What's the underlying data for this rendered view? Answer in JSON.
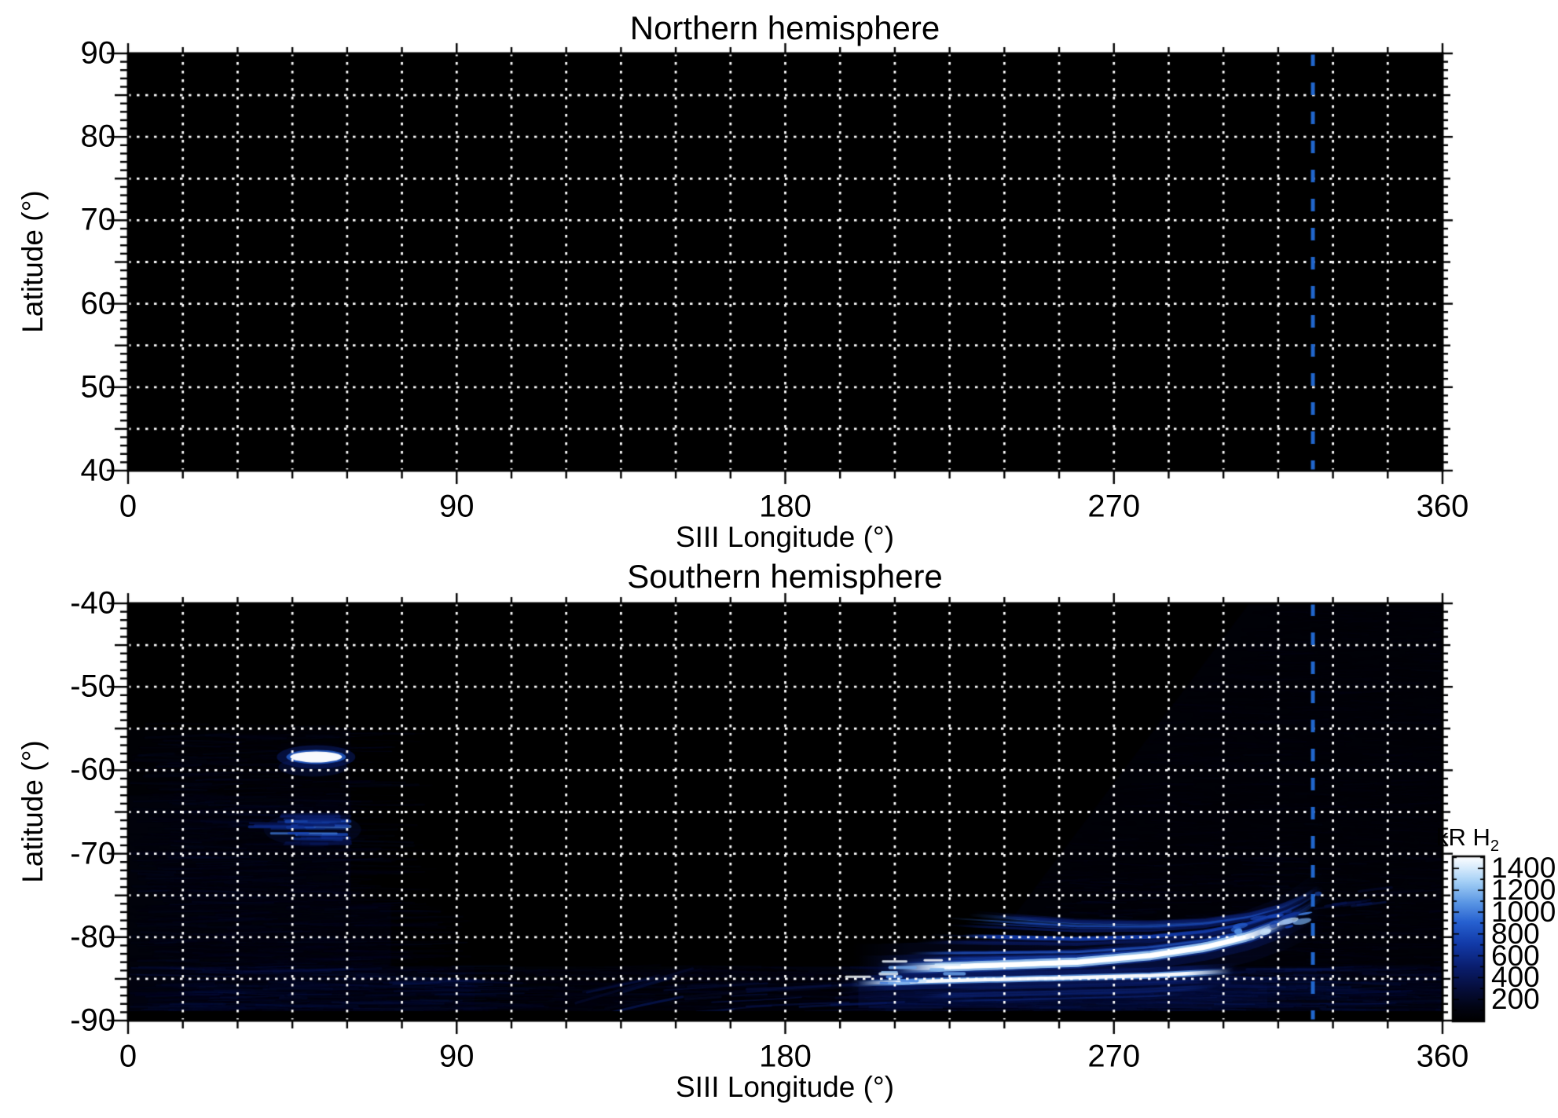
{
  "figure": {
    "background": "#ffffff",
    "grid_color": "#ffffff",
    "text_color": "#000000",
    "reference_line_color": "#2166cc"
  },
  "north": {
    "title": "Northern hemisphere",
    "xlabel": "SIII Longitude (°)",
    "ylabel": "Latitude (°)",
    "xticks": [
      0,
      90,
      180,
      270,
      360
    ],
    "yticks": [
      90,
      80,
      70,
      60,
      50,
      40
    ]
  },
  "south": {
    "title": "Southern hemisphere",
    "xlabel": "SIII Longitude (°)",
    "ylabel": "Latitude (°)",
    "xticks": [
      0,
      90,
      180,
      270,
      360
    ],
    "yticks": [
      -40,
      -50,
      -60,
      -70,
      -80,
      -90
    ]
  },
  "colorbar": {
    "label_main": "kR H",
    "label_sub": "2",
    "ticks": [
      1400,
      1200,
      1000,
      800,
      600,
      400,
      200
    ],
    "value_range": [
      0,
      1510
    ],
    "gradient": [
      [
        0.0,
        "#000000"
      ],
      [
        0.08,
        "#020412"
      ],
      [
        0.2,
        "#060e3c"
      ],
      [
        0.33,
        "#0a1e6e"
      ],
      [
        0.47,
        "#123aa8"
      ],
      [
        0.6,
        "#2660d0"
      ],
      [
        0.72,
        "#5a96e4"
      ],
      [
        0.84,
        "#a0cdf5"
      ],
      [
        0.93,
        "#d7ebfc"
      ],
      [
        1.0,
        "#ffffff"
      ]
    ]
  },
  "chart_data": [
    {
      "type": "heatmap",
      "title": "Northern hemisphere",
      "xlabel": "SIII Longitude (°)",
      "ylabel": "Latitude (°)",
      "xlim": [
        0,
        360
      ],
      "ylim": [
        40,
        90
      ],
      "xticks": [
        0,
        90,
        180,
        270,
        360
      ],
      "yticks": [
        40,
        50,
        60,
        70,
        80,
        90
      ],
      "grid": {
        "x_spacing_deg": 15,
        "y_spacing_deg": 5,
        "style": "dotted",
        "color": "#ffffff"
      },
      "background": "#000000",
      "reference_line": {
        "lon": 324.5,
        "style": "dashed",
        "color": "#2166cc"
      },
      "data_summary": "no emission shown; panel entirely black"
    },
    {
      "type": "heatmap",
      "title": "Southern hemisphere",
      "xlabel": "SIII Longitude (°)",
      "ylabel": "Latitude (°)",
      "xlim": [
        0,
        360
      ],
      "ylim": [
        -90,
        -40
      ],
      "xticks": [
        0,
        90,
        180,
        270,
        360
      ],
      "yticks": [
        -90,
        -80,
        -70,
        -60,
        -50,
        -40
      ],
      "grid": {
        "x_spacing_deg": 15,
        "y_spacing_deg": 5,
        "style": "dotted",
        "color": "#ffffff"
      },
      "background": "#000000",
      "reference_line": {
        "lon": 324.5,
        "style": "dashed",
        "color": "#2166cc"
      },
      "colorbar": {
        "label": "kR H2",
        "ticks": [
          200,
          400,
          600,
          800,
          1000,
          1200,
          1400
        ],
        "range": [
          0,
          1510
        ]
      },
      "data_summary": "UV auroral emission map: bright main oval arc from lon 200-325 rising from lat -85 to -76, secondary arc below it, filament fan above, bright spot near lon 45-60 lat -58.5, secondary patch lon 40-61 lat -67, diffuse emission at low latitudes lon 0-62 and lon>300, faint streaks along lat -86 to -89",
      "features": [
        {
          "name": "dawn-bright-spot",
          "type": "spot",
          "lon_center": 51.5,
          "lat_center": -58.4,
          "lon_halfwidth": 7.5,
          "lat_halfwidth": 0.9,
          "peak_kR": 1500
        },
        {
          "name": "dawn-secondary-patch",
          "type": "patch",
          "lon_range": [
            38,
            61
          ],
          "lat_range": [
            -69.2,
            -64.8
          ],
          "peak_kR": 950
        },
        {
          "name": "main-auroral-arc",
          "type": "arc",
          "path": [
            [
              207,
              -83.8
            ],
            [
              235,
              -83.4
            ],
            [
              260,
              -83.0
            ],
            [
              280,
              -82.2
            ],
            [
              295,
              -81.2
            ],
            [
              307,
              -79.9
            ],
            [
              316,
              -78.4
            ],
            [
              322,
              -77.0
            ],
            [
              326,
              -75.7
            ]
          ],
          "core_lon_range": [
            212,
            317
          ],
          "peak_kR": 1500
        },
        {
          "name": "secondary-lower-arc",
          "type": "arc2",
          "path": [
            [
              196,
              -85.6
            ],
            [
              225,
              -85.2
            ],
            [
              255,
              -84.9
            ],
            [
              280,
              -84.6
            ],
            [
              302,
              -84.1
            ]
          ],
          "peak_kR": 1350
        },
        {
          "name": "filament-fan",
          "type": "filaments",
          "lon_range": [
            196,
            330
          ],
          "kR_range": [
            250,
            950
          ],
          "count": 30
        },
        {
          "name": "sub-arc-filaments",
          "type": "subfilaments",
          "lon_range": [
            205,
            300
          ],
          "kR_range": [
            300,
            650
          ],
          "count": 8
        },
        {
          "name": "comb-dashes",
          "type": "comb",
          "lon_range": [
            194,
            224
          ],
          "kR_range": [
            950,
            1500
          ],
          "count": 14
        },
        {
          "name": "tip-blobs",
          "type": "blobs",
          "lon_range": [
            303,
            326
          ],
          "lat_range": [
            -78.5,
            -75.2
          ],
          "kR_range": [
            600,
            1400
          ],
          "count": 18
        },
        {
          "name": "post-tip-streaks",
          "type": "poststreaks",
          "lon_range": [
            318,
            338
          ],
          "lat_range": [
            -76.8,
            -74.5
          ],
          "kR_range": [
            280,
            550
          ],
          "count": 9
        },
        {
          "name": "left-diffuse-region",
          "type": "diffuseLeft",
          "lon_range": [
            0,
            62
          ],
          "lat_range": [
            -90,
            -54
          ],
          "kR": 170
        },
        {
          "name": "right-diffuse-swath",
          "type": "diffuseRight",
          "boundary": [
            [
              307,
              -40
            ],
            [
              221,
              -90
            ]
          ],
          "kR": 110
        },
        {
          "name": "polar-diffuse-band",
          "type": "band",
          "lon_range": [
            0,
            360
          ],
          "lat_range": [
            -89,
            -83.5
          ],
          "kR": 220
        },
        {
          "name": "below-oval-glow",
          "type": "underglow",
          "lon_range": [
            200,
            312
          ],
          "lat_range": [
            -88.5,
            -85.3
          ],
          "kR": 300
        },
        {
          "name": "bottom-streaks",
          "type": "streaks",
          "lon_range": [
            113,
            196
          ],
          "lat_range": [
            -89.3,
            -85.8
          ],
          "kR": 320,
          "count": 26
        }
      ]
    }
  ]
}
